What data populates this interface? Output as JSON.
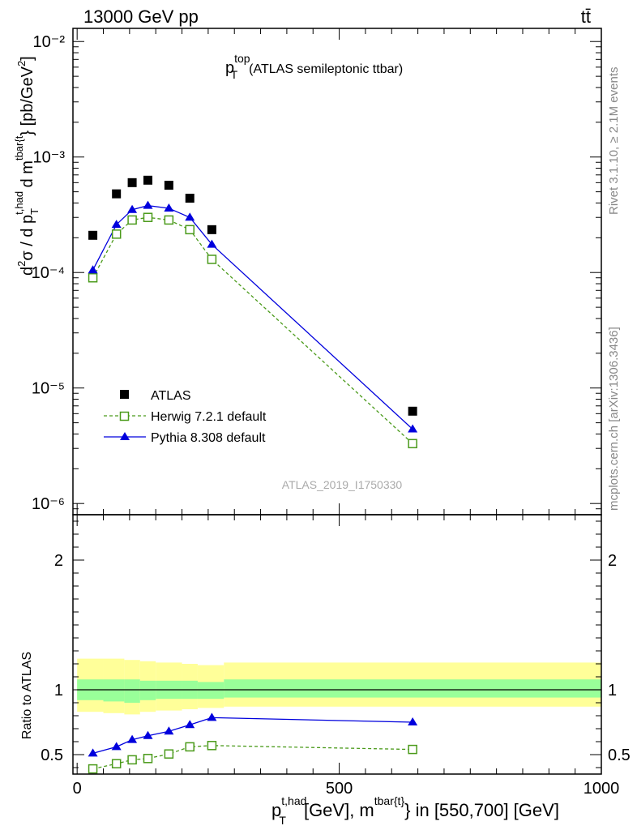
{
  "header": {
    "energy_label": "13000 GeV pp",
    "process_label": "tt̄",
    "side_top": "Rivet 3.1.10, ≥ 2.1M events",
    "side_bottom": "mcplots.cern.ch [arXiv:1306.3436]",
    "analysis_id": "ATLAS_2019_I1750330"
  },
  "chart_data": [
    {
      "type": "scatter",
      "panel": "main",
      "title_main": "p",
      "title_sup": "top",
      "title_sub": "T",
      "title_rest": "(ATLAS semileptonic ttbar)",
      "ylabel": "d²σ / d p_T^{t,had} d m^{tbar{t}} [pb/GeV²]",
      "yscale": "log",
      "ylim": [
        8e-07,
        0.013
      ],
      "xlim": [
        -8,
        1000
      ],
      "ytick_labels": [
        "10⁻⁶",
        "10⁻⁵",
        "10⁻⁴",
        "10⁻³",
        "10⁻²"
      ],
      "legend_position": "lower-left",
      "series": [
        {
          "name": "ATLAS",
          "color": "#000000",
          "marker": "square-filled",
          "line": "none",
          "x": [
            30,
            75,
            105,
            135,
            175,
            215,
            257,
            640
          ],
          "y": [
            0.00021,
            0.00048,
            0.0006,
            0.00063,
            0.00057,
            0.00044,
            0.000235,
            6.3e-06
          ]
        },
        {
          "name": "Herwig 7.2.1 default",
          "color": "#4a9a1a",
          "marker": "square-open",
          "line": "dashed",
          "x": [
            30,
            75,
            105,
            135,
            175,
            215,
            257,
            640
          ],
          "y": [
            9e-05,
            0.000215,
            0.000285,
            0.0003,
            0.000285,
            0.000235,
            0.00013,
            3.3e-06
          ]
        },
        {
          "name": "Pythia 8.308 default",
          "color": "#0000dd",
          "marker": "triangle-filled",
          "line": "solid",
          "x": [
            30,
            75,
            105,
            135,
            175,
            215,
            257,
            640
          ],
          "y": [
            0.000105,
            0.00026,
            0.00035,
            0.00038,
            0.00036,
            0.0003,
            0.000175,
            4.4e-06
          ]
        }
      ]
    },
    {
      "type": "line",
      "panel": "ratio",
      "ylabel": "Ratio to ATLAS",
      "ylim": [
        0.35,
        2.35
      ],
      "xlim": [
        -8,
        1000
      ],
      "ytick_labels": [
        "0.5",
        "1",
        "2"
      ],
      "xtick_labels": [
        "0",
        "500",
        "1000"
      ],
      "xlabel_main": "p",
      "xlabel_sup": "t,had",
      "xlabel_sub": "T",
      "xlabel_mid": "[GeV], m",
      "xlabel_sup2": "tbar{t}",
      "xlabel_rest": "} in [550,700] [GeV]",
      "bands": {
        "x_edges": [
          0,
          50,
          90,
          120,
          150,
          200,
          230,
          280,
          1000
        ],
        "yellow_color": "#ffff99",
        "green_color": "#99ff99",
        "outer_lo": [
          0.83,
          0.82,
          0.81,
          0.83,
          0.84,
          0.85,
          0.86,
          0.87
        ],
        "outer_hi": [
          1.24,
          1.24,
          1.23,
          1.22,
          1.21,
          1.2,
          1.19,
          1.21
        ],
        "inner_lo": [
          0.92,
          0.91,
          0.9,
          0.92,
          0.93,
          0.93,
          0.93,
          0.94
        ],
        "inner_hi": [
          1.08,
          1.08,
          1.08,
          1.07,
          1.07,
          1.07,
          1.06,
          1.08
        ]
      },
      "series": [
        {
          "name": "Herwig 7.2.1 default",
          "color": "#4a9a1a",
          "marker": "square-open",
          "line": "dashed",
          "x": [
            30,
            75,
            105,
            135,
            175,
            215,
            257,
            640
          ],
          "y": [
            0.39,
            0.43,
            0.46,
            0.47,
            0.505,
            0.56,
            0.57,
            0.54
          ]
        },
        {
          "name": "Pythia 8.308 default",
          "color": "#0000dd",
          "marker": "triangle-filled",
          "line": "solid",
          "x": [
            30,
            75,
            105,
            135,
            175,
            215,
            257,
            640
          ],
          "y": [
            0.51,
            0.56,
            0.615,
            0.645,
            0.68,
            0.73,
            0.785,
            0.75
          ]
        }
      ]
    }
  ]
}
